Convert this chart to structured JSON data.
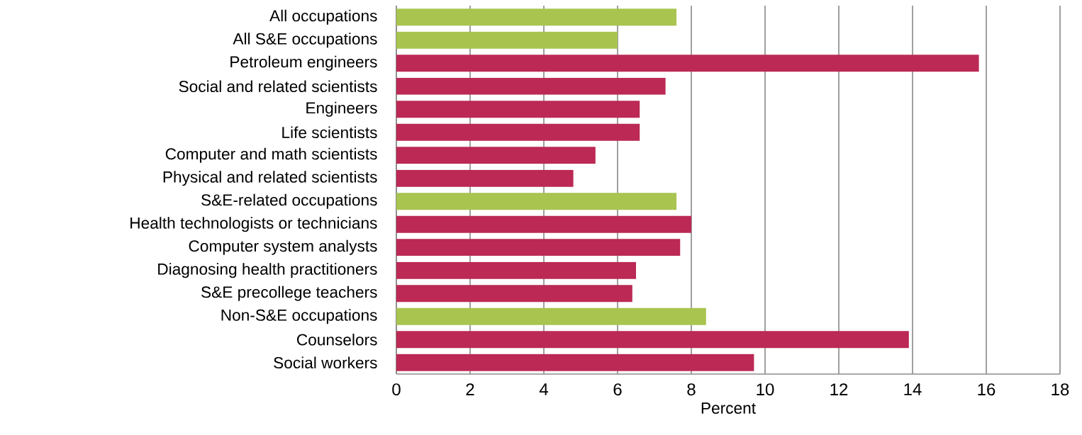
{
  "chart_data": {
    "type": "bar",
    "orientation": "horizontal",
    "xlabel": "Percent",
    "categories": [
      "All occupations",
      "All S&E occupations",
      "Petroleum engineers",
      "Social and related scientists",
      "Engineers",
      "Life scientists",
      "Computer and math scientists",
      "Physical and related scientists",
      "S&E-related occupations",
      "Health technologists or technicians",
      "Computer system analysts",
      "Diagnosing health practitioners",
      "S&E precollege teachers",
      "Non-S&E occupations",
      "Counselors",
      "Social workers"
    ],
    "values": [
      7.6,
      6.0,
      15.8,
      7.3,
      6.6,
      6.6,
      5.4,
      4.8,
      7.6,
      8.0,
      7.7,
      6.5,
      6.4,
      8.4,
      13.9,
      9.7
    ],
    "colors": [
      "#a9c44f",
      "#a9c44f",
      "#bb2954",
      "#bb2954",
      "#bb2954",
      "#bb2954",
      "#bb2954",
      "#bb2954",
      "#a9c44f",
      "#bb2954",
      "#bb2954",
      "#bb2954",
      "#bb2954",
      "#a9c44f",
      "#bb2954",
      "#bb2954"
    ],
    "xlim": [
      0,
      18
    ],
    "xticks": [
      0,
      2,
      4,
      6,
      8,
      10,
      12,
      14,
      16,
      18
    ],
    "grid": "x"
  }
}
